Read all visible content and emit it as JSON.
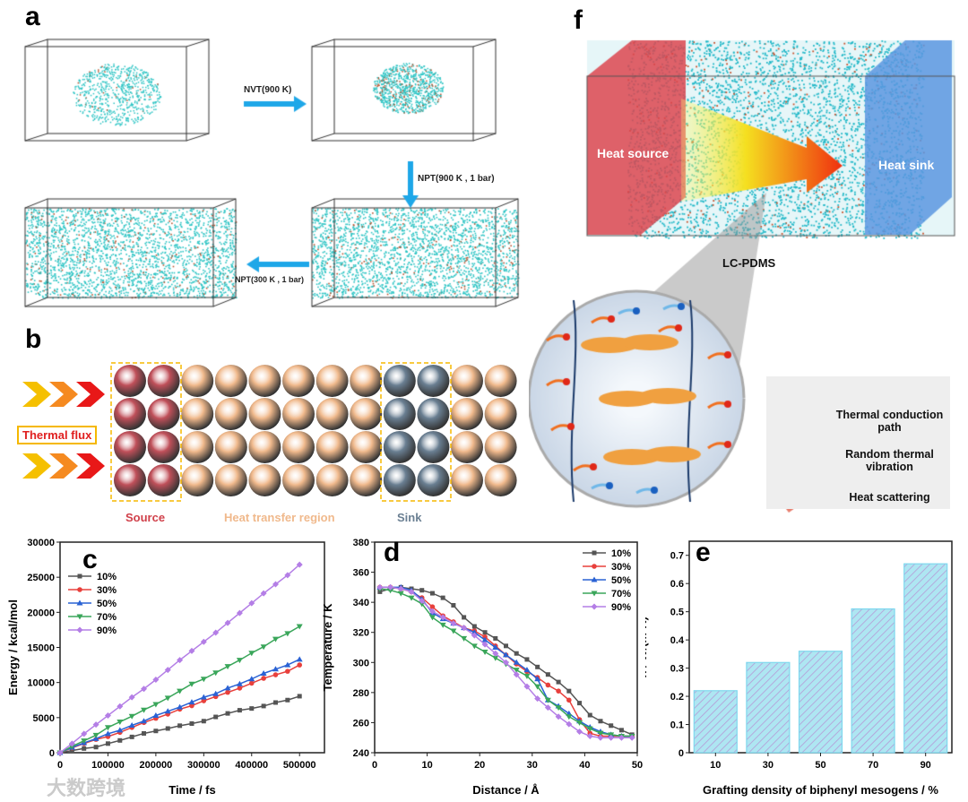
{
  "panels": {
    "a": {
      "label": "a",
      "steps": [
        "NVT(900 K)",
        "NPT(900 K , 1 bar)",
        "NPT(300 K , 1 bar)"
      ]
    },
    "b": {
      "label": "b",
      "thermal_flux": "Thermal flux",
      "regions": [
        "Source",
        "Heat transfer region",
        "Sink"
      ],
      "colors": {
        "source": "#c0505a",
        "transfer": "#f0b98c",
        "sink": "#6a7f92"
      }
    },
    "f": {
      "label": "f",
      "heat_source": "Heat source",
      "heat_sink": "Heat sink",
      "material": "LC-PDMS",
      "legend": [
        "Thermal conduction path",
        "Random thermal vibration",
        "Heat scattering"
      ]
    }
  },
  "watermark": "大数跨境",
  "chart_data": [
    {
      "panel": "c",
      "type": "line",
      "title": "",
      "xlabel": "Time / fs",
      "ylabel": "Energy / kcal/mol",
      "xlim": [
        0,
        552000
      ],
      "ylim": [
        0,
        30000
      ],
      "xticks": [
        0,
        100000,
        200000,
        300000,
        400000,
        500000
      ],
      "yticks": [
        0,
        5000,
        10000,
        15000,
        20000,
        25000,
        30000
      ],
      "legend_position": "top-left",
      "x": [
        0,
        25000,
        50000,
        75000,
        100000,
        125000,
        150000,
        175000,
        200000,
        225000,
        250000,
        275000,
        300000,
        325000,
        350000,
        375000,
        400000,
        425000,
        450000,
        475000,
        500000
      ],
      "series": [
        {
          "name": "10%",
          "color": "#555555",
          "marker": "square",
          "values": [
            0,
            300,
            600,
            800,
            1300,
            1750,
            2250,
            2750,
            3100,
            3450,
            3850,
            4150,
            4500,
            5100,
            5600,
            6050,
            6300,
            6650,
            7150,
            7500,
            8050
          ]
        },
        {
          "name": "30%",
          "color": "#e8403c",
          "marker": "circle",
          "values": [
            0,
            700,
            1300,
            1900,
            2300,
            2900,
            3600,
            4300,
            4900,
            5500,
            6200,
            6700,
            7400,
            8000,
            8600,
            9200,
            9900,
            10600,
            11100,
            11600,
            12500
          ]
        },
        {
          "name": "50%",
          "color": "#2a62d4",
          "marker": "triangle-up",
          "values": [
            0,
            750,
            1400,
            2000,
            2700,
            3200,
            3900,
            4500,
            5300,
            5900,
            6500,
            7200,
            7900,
            8400,
            9200,
            9800,
            10500,
            11300,
            11900,
            12500,
            13300
          ]
        },
        {
          "name": "70%",
          "color": "#3aa65a",
          "marker": "triangle-down",
          "values": [
            0,
            900,
            1700,
            2500,
            3600,
            4400,
            5200,
            6100,
            6900,
            7800,
            8800,
            9800,
            10500,
            11400,
            12300,
            13200,
            14200,
            15100,
            16200,
            17000,
            18000
          ]
        },
        {
          "name": "90%",
          "color": "#b47ee6",
          "marker": "diamond",
          "values": [
            0,
            1300,
            2700,
            4000,
            5300,
            6600,
            7900,
            9100,
            10400,
            11800,
            13200,
            14500,
            15800,
            17100,
            18500,
            19900,
            21300,
            22700,
            24000,
            25300,
            26800
          ]
        }
      ]
    },
    {
      "panel": "d",
      "type": "line",
      "title": "",
      "xlabel": "Distance / Å",
      "ylabel": "Temperature / K",
      "xlim": [
        0,
        50
      ],
      "ylim": [
        240,
        380
      ],
      "xticks": [
        0,
        10,
        20,
        30,
        40,
        50
      ],
      "yticks": [
        240,
        260,
        280,
        300,
        320,
        340,
        360,
        380
      ],
      "legend_position": "top-right",
      "x": [
        1,
        3,
        5,
        7,
        9,
        11,
        13,
        15,
        17,
        19,
        21,
        23,
        25,
        27,
        29,
        31,
        33,
        35,
        37,
        39,
        41,
        43,
        45,
        47,
        49
      ],
      "series": [
        {
          "name": "10%",
          "color": "#555555",
          "marker": "square",
          "values": [
            347,
            349,
            350,
            349,
            348,
            346,
            343,
            338,
            330,
            324,
            320,
            316,
            311,
            306,
            302,
            297,
            292,
            287,
            281,
            273,
            265,
            261,
            258,
            255,
            252
          ]
        },
        {
          "name": "30%",
          "color": "#e8403c",
          "marker": "circle",
          "values": [
            350,
            350,
            349,
            347,
            343,
            337,
            331,
            327,
            323,
            321,
            317,
            311,
            305,
            299,
            294,
            290,
            285,
            281,
            275,
            262,
            253,
            251,
            251,
            251,
            251
          ]
        },
        {
          "name": "50%",
          "color": "#2a62d4",
          "marker": "triangle-up",
          "values": [
            350,
            350,
            350,
            348,
            342,
            333,
            329,
            326,
            323,
            320,
            315,
            310,
            305,
            300,
            295,
            289,
            275,
            271,
            266,
            261,
            257,
            254,
            252,
            251,
            251
          ]
        },
        {
          "name": "70%",
          "color": "#3aa65a",
          "marker": "triangle-down",
          "values": [
            349,
            348,
            346,
            343,
            339,
            330,
            325,
            321,
            316,
            311,
            307,
            303,
            299,
            295,
            291,
            284,
            275,
            270,
            264,
            260,
            256,
            253,
            252,
            251,
            251
          ]
        },
        {
          "name": "90%",
          "color": "#b47ee6",
          "marker": "diamond",
          "values": [
            350,
            350,
            349,
            347,
            341,
            334,
            330,
            326,
            323,
            318,
            312,
            306,
            300,
            292,
            284,
            276,
            270,
            264,
            259,
            254,
            251,
            250,
            250,
            250,
            250
          ]
        }
      ]
    },
    {
      "panel": "e",
      "type": "bar",
      "title": "",
      "xlabel": "Grafting density of biphenyl mesogens / %",
      "ylabel": "λ / W/(m·K)",
      "ylim": [
        0,
        0.75
      ],
      "yticks": [
        0.0,
        0.1,
        0.2,
        0.3,
        0.4,
        0.5,
        0.6,
        0.7
      ],
      "categories": [
        "10",
        "30",
        "50",
        "70",
        "90"
      ],
      "values": [
        0.22,
        0.32,
        0.36,
        0.51,
        0.67
      ],
      "colors": {
        "fill": "#aee6f2",
        "hatch": "#b59ad6",
        "edge": "#7fd8ee"
      }
    }
  ]
}
